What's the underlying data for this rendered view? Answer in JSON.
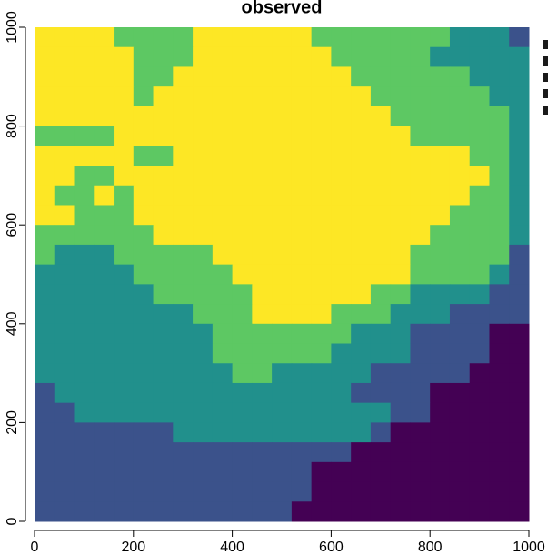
{
  "chart_data": {
    "type": "raster",
    "title": "observed",
    "xlim": [
      0,
      1000
    ],
    "ylim": [
      0,
      1000
    ],
    "xticks": [
      0,
      200,
      400,
      600,
      800,
      1000
    ],
    "yticks": [
      0,
      200,
      400,
      600,
      800,
      1000
    ],
    "colors": [
      "#440154",
      "#3B528B",
      "#21908C",
      "#5DC863",
      "#FDE725"
    ],
    "z": [
      [
        5,
        5,
        5,
        5,
        4,
        4,
        4,
        4,
        5,
        5,
        5,
        5,
        5,
        5,
        4,
        4,
        4,
        4,
        4,
        4,
        4,
        3,
        3,
        3,
        2
      ],
      [
        5,
        5,
        5,
        5,
        5,
        4,
        4,
        4,
        5,
        5,
        5,
        5,
        5,
        5,
        5,
        4,
        4,
        4,
        4,
        4,
        3,
        3,
        3,
        3,
        3
      ],
      [
        5,
        5,
        5,
        5,
        5,
        4,
        4,
        5,
        5,
        5,
        5,
        5,
        5,
        5,
        5,
        5,
        4,
        4,
        4,
        4,
        4,
        4,
        3,
        3,
        3
      ],
      [
        5,
        5,
        5,
        5,
        5,
        4,
        5,
        5,
        5,
        5,
        5,
        5,
        5,
        5,
        5,
        5,
        5,
        4,
        4,
        4,
        4,
        4,
        4,
        3,
        3
      ],
      [
        5,
        5,
        5,
        5,
        5,
        5,
        5,
        5,
        5,
        5,
        5,
        5,
        5,
        5,
        5,
        5,
        5,
        5,
        4,
        4,
        4,
        4,
        4,
        4,
        3
      ],
      [
        4,
        4,
        4,
        4,
        5,
        5,
        5,
        5,
        5,
        5,
        5,
        5,
        5,
        5,
        5,
        5,
        5,
        5,
        5,
        4,
        4,
        4,
        4,
        4,
        3
      ],
      [
        5,
        5,
        5,
        5,
        5,
        4,
        4,
        5,
        5,
        5,
        5,
        5,
        5,
        5,
        5,
        5,
        5,
        5,
        5,
        5,
        5,
        5,
        4,
        4,
        3
      ],
      [
        5,
        5,
        4,
        4,
        5,
        5,
        5,
        5,
        5,
        5,
        5,
        5,
        5,
        5,
        5,
        5,
        5,
        5,
        5,
        5,
        5,
        5,
        5,
        4,
        3
      ],
      [
        5,
        4,
        4,
        5,
        4,
        5,
        5,
        5,
        5,
        5,
        5,
        5,
        5,
        5,
        5,
        5,
        5,
        5,
        5,
        5,
        5,
        5,
        4,
        4,
        3
      ],
      [
        5,
        5,
        4,
        4,
        4,
        5,
        5,
        5,
        5,
        5,
        5,
        5,
        5,
        5,
        5,
        5,
        5,
        5,
        5,
        5,
        5,
        4,
        4,
        4,
        3
      ],
      [
        4,
        4,
        4,
        4,
        4,
        4,
        5,
        5,
        5,
        5,
        5,
        5,
        5,
        5,
        5,
        5,
        5,
        5,
        5,
        5,
        4,
        4,
        4,
        4,
        3
      ],
      [
        4,
        3,
        3,
        3,
        4,
        4,
        4,
        4,
        4,
        5,
        5,
        5,
        5,
        5,
        5,
        5,
        5,
        5,
        5,
        4,
        4,
        4,
        4,
        4,
        2
      ],
      [
        3,
        3,
        3,
        3,
        3,
        4,
        4,
        4,
        4,
        4,
        5,
        5,
        5,
        5,
        5,
        5,
        5,
        5,
        5,
        4,
        4,
        4,
        4,
        3,
        2
      ],
      [
        3,
        3,
        3,
        3,
        3,
        3,
        4,
        4,
        4,
        4,
        4,
        5,
        5,
        5,
        5,
        5,
        5,
        4,
        4,
        3,
        3,
        3,
        3,
        2,
        2
      ],
      [
        3,
        3,
        3,
        3,
        3,
        3,
        3,
        3,
        4,
        4,
        4,
        5,
        5,
        5,
        5,
        4,
        4,
        4,
        3,
        3,
        3,
        2,
        2,
        2,
        2
      ],
      [
        3,
        3,
        3,
        3,
        3,
        3,
        3,
        3,
        3,
        4,
        4,
        4,
        4,
        4,
        4,
        4,
        3,
        3,
        3,
        2,
        2,
        2,
        2,
        1,
        1
      ],
      [
        3,
        3,
        3,
        3,
        3,
        3,
        3,
        3,
        3,
        4,
        4,
        4,
        4,
        4,
        4,
        3,
        3,
        3,
        3,
        2,
        2,
        2,
        2,
        1,
        1
      ],
      [
        3,
        3,
        3,
        3,
        3,
        3,
        3,
        3,
        3,
        3,
        4,
        4,
        3,
        3,
        3,
        3,
        3,
        2,
        2,
        2,
        2,
        2,
        1,
        1,
        1
      ],
      [
        2,
        3,
        3,
        3,
        3,
        3,
        3,
        3,
        3,
        3,
        3,
        3,
        3,
        3,
        3,
        3,
        2,
        2,
        2,
        2,
        1,
        1,
        1,
        1,
        1
      ],
      [
        2,
        2,
        3,
        3,
        3,
        3,
        3,
        3,
        3,
        3,
        3,
        3,
        3,
        3,
        3,
        3,
        3,
        3,
        2,
        2,
        1,
        1,
        1,
        1,
        1
      ],
      [
        2,
        2,
        2,
        2,
        2,
        2,
        2,
        3,
        3,
        3,
        3,
        3,
        3,
        3,
        3,
        3,
        3,
        2,
        1,
        1,
        1,
        1,
        1,
        1,
        1
      ],
      [
        2,
        2,
        2,
        2,
        2,
        2,
        2,
        2,
        2,
        2,
        2,
        2,
        2,
        2,
        2,
        2,
        1,
        1,
        1,
        1,
        1,
        1,
        1,
        1,
        1
      ],
      [
        2,
        2,
        2,
        2,
        2,
        2,
        2,
        2,
        2,
        2,
        2,
        2,
        2,
        2,
        1,
        1,
        1,
        1,
        1,
        1,
        1,
        1,
        1,
        1,
        1
      ],
      [
        2,
        2,
        2,
        2,
        2,
        2,
        2,
        2,
        2,
        2,
        2,
        2,
        2,
        2,
        1,
        1,
        1,
        1,
        1,
        1,
        1,
        1,
        1,
        1,
        1
      ],
      [
        2,
        2,
        2,
        2,
        2,
        2,
        2,
        2,
        2,
        2,
        2,
        2,
        2,
        1,
        1,
        1,
        1,
        1,
        1,
        1,
        1,
        1,
        1,
        1,
        1
      ]
    ]
  }
}
